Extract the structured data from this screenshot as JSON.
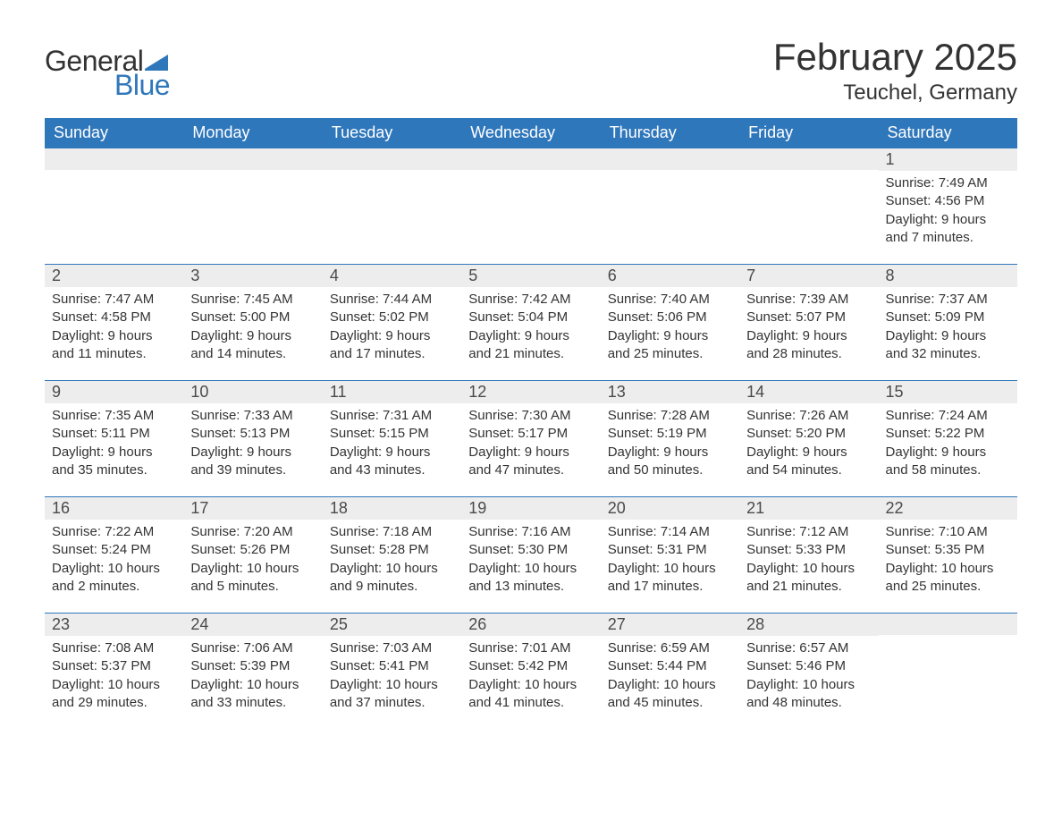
{
  "logo": {
    "text_general": "General",
    "text_blue": "Blue",
    "flag_color": "#2f77bb"
  },
  "title": "February 2025",
  "location": "Teuchel, Germany",
  "colors": {
    "header_bg": "#2f77bb",
    "header_text": "#ffffff",
    "daynum_bg": "#ededed",
    "border": "#2f77bb",
    "text": "#333333",
    "page_bg": "#ffffff"
  },
  "day_headers": [
    "Sunday",
    "Monday",
    "Tuesday",
    "Wednesday",
    "Thursday",
    "Friday",
    "Saturday"
  ],
  "weeks": [
    [
      null,
      null,
      null,
      null,
      null,
      null,
      {
        "n": "1",
        "sunrise": "7:49 AM",
        "sunset": "4:56 PM",
        "daylight": "9 hours and 7 minutes."
      }
    ],
    [
      {
        "n": "2",
        "sunrise": "7:47 AM",
        "sunset": "4:58 PM",
        "daylight": "9 hours and 11 minutes."
      },
      {
        "n": "3",
        "sunrise": "7:45 AM",
        "sunset": "5:00 PM",
        "daylight": "9 hours and 14 minutes."
      },
      {
        "n": "4",
        "sunrise": "7:44 AM",
        "sunset": "5:02 PM",
        "daylight": "9 hours and 17 minutes."
      },
      {
        "n": "5",
        "sunrise": "7:42 AM",
        "sunset": "5:04 PM",
        "daylight": "9 hours and 21 minutes."
      },
      {
        "n": "6",
        "sunrise": "7:40 AM",
        "sunset": "5:06 PM",
        "daylight": "9 hours and 25 minutes."
      },
      {
        "n": "7",
        "sunrise": "7:39 AM",
        "sunset": "5:07 PM",
        "daylight": "9 hours and 28 minutes."
      },
      {
        "n": "8",
        "sunrise": "7:37 AM",
        "sunset": "5:09 PM",
        "daylight": "9 hours and 32 minutes."
      }
    ],
    [
      {
        "n": "9",
        "sunrise": "7:35 AM",
        "sunset": "5:11 PM",
        "daylight": "9 hours and 35 minutes."
      },
      {
        "n": "10",
        "sunrise": "7:33 AM",
        "sunset": "5:13 PM",
        "daylight": "9 hours and 39 minutes."
      },
      {
        "n": "11",
        "sunrise": "7:31 AM",
        "sunset": "5:15 PM",
        "daylight": "9 hours and 43 minutes."
      },
      {
        "n": "12",
        "sunrise": "7:30 AM",
        "sunset": "5:17 PM",
        "daylight": "9 hours and 47 minutes."
      },
      {
        "n": "13",
        "sunrise": "7:28 AM",
        "sunset": "5:19 PM",
        "daylight": "9 hours and 50 minutes."
      },
      {
        "n": "14",
        "sunrise": "7:26 AM",
        "sunset": "5:20 PM",
        "daylight": "9 hours and 54 minutes."
      },
      {
        "n": "15",
        "sunrise": "7:24 AM",
        "sunset": "5:22 PM",
        "daylight": "9 hours and 58 minutes."
      }
    ],
    [
      {
        "n": "16",
        "sunrise": "7:22 AM",
        "sunset": "5:24 PM",
        "daylight": "10 hours and 2 minutes."
      },
      {
        "n": "17",
        "sunrise": "7:20 AM",
        "sunset": "5:26 PM",
        "daylight": "10 hours and 5 minutes."
      },
      {
        "n": "18",
        "sunrise": "7:18 AM",
        "sunset": "5:28 PM",
        "daylight": "10 hours and 9 minutes."
      },
      {
        "n": "19",
        "sunrise": "7:16 AM",
        "sunset": "5:30 PM",
        "daylight": "10 hours and 13 minutes."
      },
      {
        "n": "20",
        "sunrise": "7:14 AM",
        "sunset": "5:31 PM",
        "daylight": "10 hours and 17 minutes."
      },
      {
        "n": "21",
        "sunrise": "7:12 AM",
        "sunset": "5:33 PM",
        "daylight": "10 hours and 21 minutes."
      },
      {
        "n": "22",
        "sunrise": "7:10 AM",
        "sunset": "5:35 PM",
        "daylight": "10 hours and 25 minutes."
      }
    ],
    [
      {
        "n": "23",
        "sunrise": "7:08 AM",
        "sunset": "5:37 PM",
        "daylight": "10 hours and 29 minutes."
      },
      {
        "n": "24",
        "sunrise": "7:06 AM",
        "sunset": "5:39 PM",
        "daylight": "10 hours and 33 minutes."
      },
      {
        "n": "25",
        "sunrise": "7:03 AM",
        "sunset": "5:41 PM",
        "daylight": "10 hours and 37 minutes."
      },
      {
        "n": "26",
        "sunrise": "7:01 AM",
        "sunset": "5:42 PM",
        "daylight": "10 hours and 41 minutes."
      },
      {
        "n": "27",
        "sunrise": "6:59 AM",
        "sunset": "5:44 PM",
        "daylight": "10 hours and 45 minutes."
      },
      {
        "n": "28",
        "sunrise": "6:57 AM",
        "sunset": "5:46 PM",
        "daylight": "10 hours and 48 minutes."
      },
      null
    ]
  ],
  "labels": {
    "sunrise_prefix": "Sunrise: ",
    "sunset_prefix": "Sunset: ",
    "daylight_prefix": "Daylight: "
  }
}
